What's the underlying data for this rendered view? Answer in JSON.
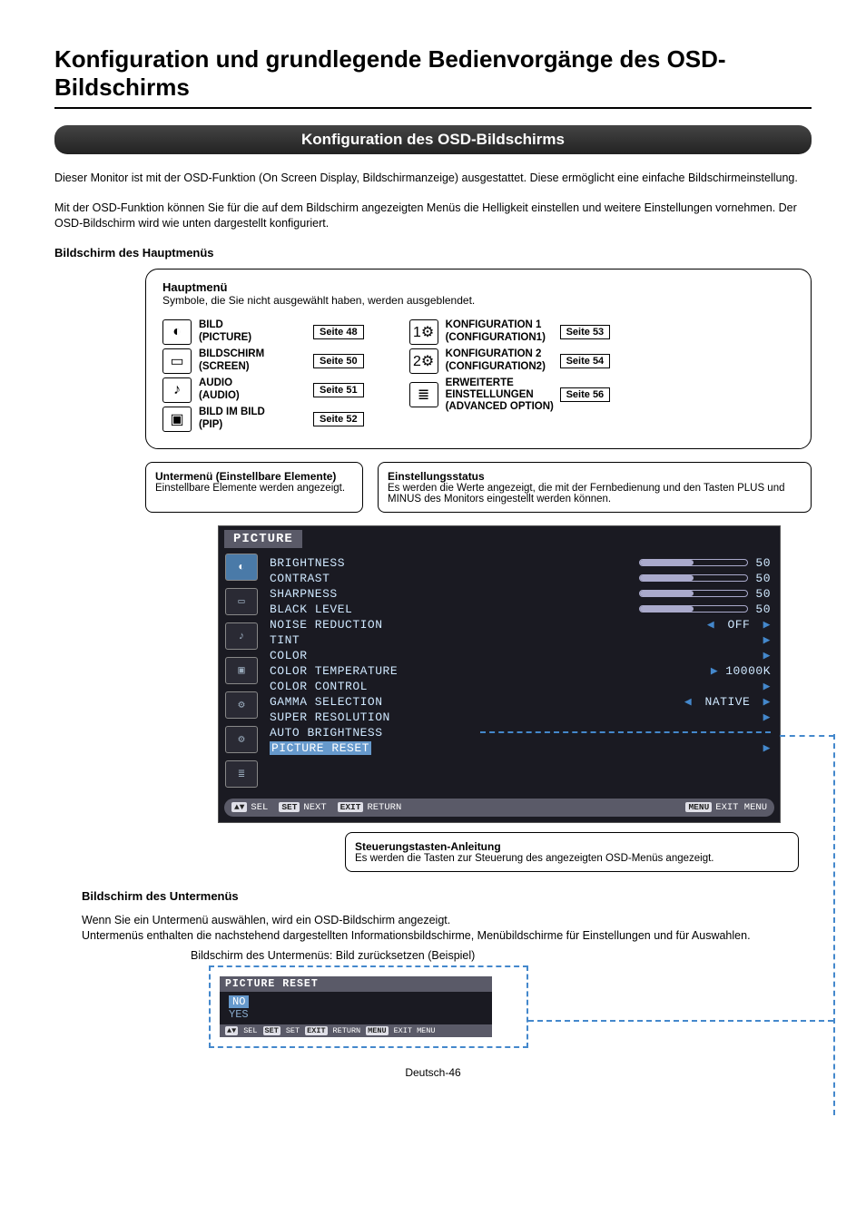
{
  "page": {
    "title": "Konfiguration und grundlegende Bedienvorgänge des OSD-Bildschirms",
    "section_banner": "Konfiguration des OSD-Bildschirms",
    "intro_p1": "Dieser Monitor ist mit der OSD-Funktion (On Screen Display, Bildschirmanzeige) ausgestattet. Diese ermöglicht eine einfache Bildschirmeinstellung.",
    "intro_p2": "Mit der OSD-Funktion können Sie für die auf dem Bildschirm angezeigten Menüs die Helligkeit einstellen und weitere Einstellungen vornehmen. Der OSD-Bildschirm wird wie unten dargestellt konfiguriert.",
    "hauptmenu_head": "Bildschirm des Hauptmenüs",
    "hauptmenu_title": "Hauptmenü",
    "hauptmenu_sub": "Symbole, die Sie nicht ausgewählt haben, werden ausgeblendet.",
    "footer": "Deutsch-46"
  },
  "menu_items": {
    "left": [
      {
        "l1": "BILD",
        "l2": "(PICTURE)",
        "page": "Seite 48",
        "glyph": "◐"
      },
      {
        "l1": "BILDSCHIRM",
        "l2": "(SCREEN)",
        "page": "Seite 50",
        "glyph": "▭"
      },
      {
        "l1": "AUDIO",
        "l2": "(AUDIO)",
        "page": "Seite 51",
        "glyph": "♪"
      },
      {
        "l1": "BILD IM BILD",
        "l2": "(PIP)",
        "page": "Seite 52",
        "glyph": "▣"
      }
    ],
    "right": [
      {
        "l1": "KONFIGURATION 1",
        "l2": "(CONFIGURATION1)",
        "page": "Seite 53",
        "glyph": "1⚙"
      },
      {
        "l1": "KONFIGURATION 2",
        "l2": "(CONFIGURATION2)",
        "page": "Seite 54",
        "glyph": "2⚙"
      },
      {
        "l1": "ERWEITERTE EINSTELLUNGEN",
        "l2": "(ADVANCED OPTION)",
        "page": "Seite 56",
        "glyph": "≣"
      }
    ]
  },
  "desc_left": {
    "title": "Untermenü (Einstellbare Elemente)",
    "body": "Einstellbare Elemente werden angezeigt."
  },
  "desc_right": {
    "title": "Einstellungsstatus",
    "body": "Es werden die Werte angezeigt, die mit der Fernbedienung und den Tasten PLUS und MINUS des Monitors eingestellt werden können."
  },
  "osd": {
    "topbar": "PICTURE",
    "side_icons": [
      "◐",
      "▭",
      "♪",
      "▣",
      "⚙",
      "⚙",
      "≣"
    ],
    "rows": [
      {
        "label": "BRIGHTNESS",
        "type": "slider",
        "value": "50",
        "fill": 50
      },
      {
        "label": "CONTRAST",
        "type": "slider",
        "value": "50",
        "fill": 50
      },
      {
        "label": "SHARPNESS",
        "type": "slider",
        "value": "50",
        "fill": 50
      },
      {
        "label": "BLACK LEVEL",
        "type": "slider",
        "value": "50",
        "fill": 50
      },
      {
        "label": "NOISE REDUCTION",
        "type": "lr",
        "value": "OFF"
      },
      {
        "label": "TINT",
        "type": "r"
      },
      {
        "label": "COLOR",
        "type": "r"
      },
      {
        "label": "COLOR TEMPERATURE",
        "type": "rv",
        "value": "10000K"
      },
      {
        "label": "COLOR CONTROL",
        "type": "r"
      },
      {
        "label": "GAMMA SELECTION",
        "type": "lr",
        "value": "NATIVE"
      },
      {
        "label": "SUPER RESOLUTION",
        "type": "r"
      },
      {
        "label": "AUTO BRIGHTNESS",
        "type": "dash"
      },
      {
        "label": "PICTURE RESET",
        "type": "r",
        "highlight": true
      }
    ],
    "footer": {
      "sel": "SEL",
      "sel_glyph": "▲▼",
      "set": "SET",
      "next": "NEXT",
      "exit": "EXIT",
      "ret": "RETURN",
      "menu": "MENU",
      "em": "EXIT MENU"
    }
  },
  "steuer": {
    "title": "Steuerungstasten-Anleitung",
    "body": "Es werden die Tasten zur Steuerung des angezeigten OSD-Menüs angezeigt."
  },
  "subm": {
    "head": "Bildschirm des Untermenüs",
    "p1": "Wenn Sie ein Untermenü auswählen, wird ein OSD-Bildschirm angezeigt.",
    "p2": "Untermenüs enthalten die nachstehend dargestellten Informationsbildschirme, Menübildschirme für Einstellungen und für Auswahlen.",
    "caption": "Bildschirm des Untermenüs: Bild zurücksetzen (Beispiel)",
    "osd": {
      "title": "PICTURE RESET",
      "no": "NO",
      "yes": "YES",
      "footer": {
        "sel_glyph": "▲▼",
        "sel": "SEL",
        "set_chip": "SET",
        "set": "SET",
        "exit_chip": "EXIT",
        "ret": "RETURN",
        "menu_chip": "MENU",
        "em": "EXIT MENU"
      }
    }
  },
  "colors": {
    "dash": "#4488cc",
    "osd_bg": "#1a1a22",
    "osd_text": "#cfe8ff"
  }
}
